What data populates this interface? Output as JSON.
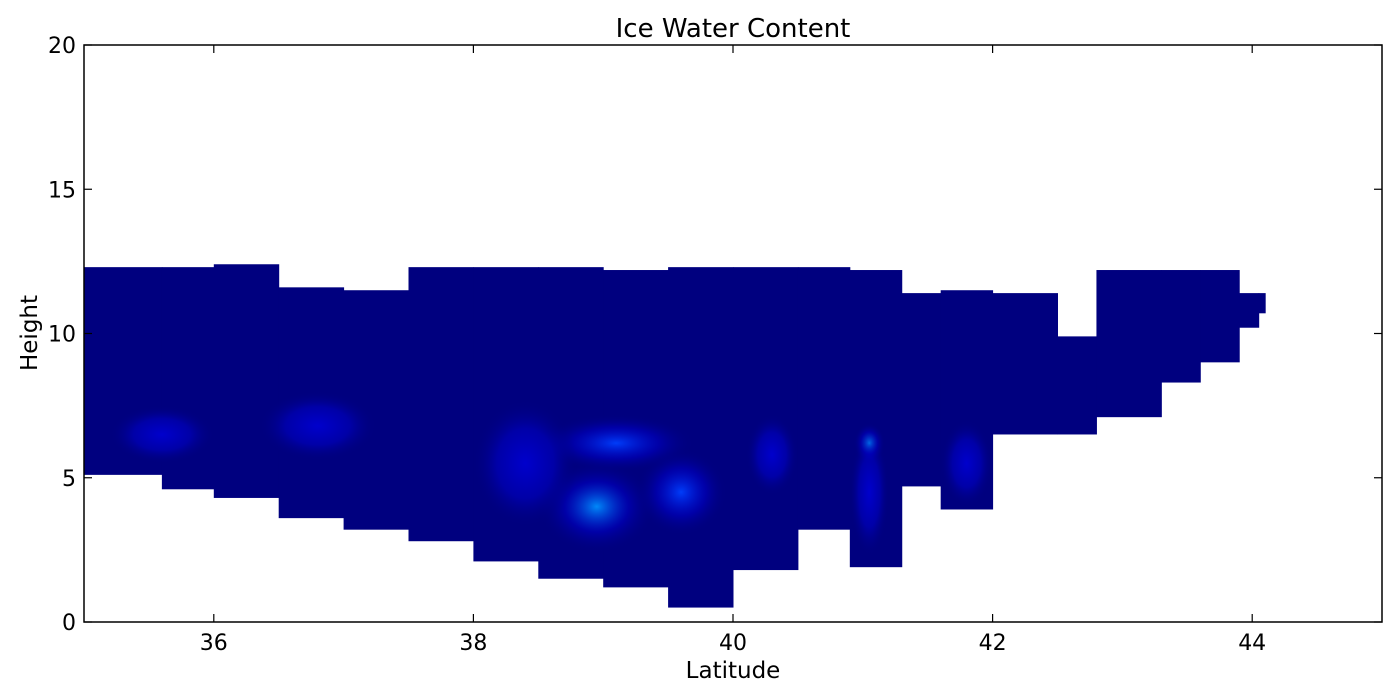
{
  "chart_data": {
    "type": "heatmap",
    "title": "Ice Water Content",
    "xlabel": "Latitude",
    "ylabel": "Height",
    "xlim": [
      35,
      45
    ],
    "ylim": [
      0,
      20
    ],
    "x_ticks": [
      36,
      38,
      40,
      42,
      44
    ],
    "y_ticks": [
      0,
      5,
      10,
      15,
      20
    ],
    "grid": false,
    "colorscale": [
      "#00007f",
      "#0000d0",
      "#0040ff",
      "#0090ff",
      "#20c0ff"
    ],
    "columns": [
      {
        "lat0": 35.0,
        "lat1": 35.6,
        "top": 12.3,
        "bottom": 5.1
      },
      {
        "lat0": 35.6,
        "lat1": 36.0,
        "top": 12.3,
        "bottom": 4.6
      },
      {
        "lat0": 36.0,
        "lat1": 36.5,
        "top": 12.4,
        "bottom": 4.3
      },
      {
        "lat0": 36.5,
        "lat1": 37.0,
        "top": 11.6,
        "bottom": 3.6
      },
      {
        "lat0": 37.0,
        "lat1": 37.5,
        "top": 11.5,
        "bottom": 3.2
      },
      {
        "lat0": 37.5,
        "lat1": 38.0,
        "top": 12.3,
        "bottom": 2.8
      },
      {
        "lat0": 38.0,
        "lat1": 38.5,
        "top": 12.3,
        "bottom": 2.1
      },
      {
        "lat0": 38.5,
        "lat1": 39.0,
        "top": 12.3,
        "bottom": 1.5
      },
      {
        "lat0": 39.0,
        "lat1": 39.5,
        "top": 12.2,
        "bottom": 1.2
      },
      {
        "lat0": 39.5,
        "lat1": 40.0,
        "top": 12.3,
        "bottom": 0.5
      },
      {
        "lat0": 40.0,
        "lat1": 40.5,
        "top": 12.3,
        "bottom": 1.8
      },
      {
        "lat0": 40.5,
        "lat1": 40.9,
        "top": 12.3,
        "bottom": 3.2
      },
      {
        "lat0": 40.9,
        "lat1": 41.3,
        "top": 12.2,
        "bottom": 1.9
      },
      {
        "lat0": 41.3,
        "lat1": 41.6,
        "top": 11.4,
        "bottom": 4.7
      },
      {
        "lat0": 41.6,
        "lat1": 42.0,
        "top": 11.5,
        "bottom": 3.9
      },
      {
        "lat0": 42.0,
        "lat1": 42.5,
        "top": 11.4,
        "bottom": 6.5
      },
      {
        "lat0": 42.5,
        "lat1": 42.8,
        "top": 9.9,
        "bottom": 6.5
      },
      {
        "lat0": 42.8,
        "lat1": 43.3,
        "top": 12.2,
        "bottom": 7.1
      },
      {
        "lat0": 43.3,
        "lat1": 43.6,
        "top": 12.2,
        "bottom": 8.3
      },
      {
        "lat0": 43.6,
        "lat1": 43.9,
        "top": 12.2,
        "bottom": 9.0
      },
      {
        "lat0": 43.9,
        "lat1": 44.05,
        "top": 11.4,
        "bottom": 10.2
      },
      {
        "lat0": 44.05,
        "lat1": 44.1,
        "top": 11.4,
        "bottom": 10.7
      }
    ],
    "hotspots": [
      {
        "lat": 38.95,
        "height": 4.0,
        "value": 0.75,
        "lat_radius": 0.45,
        "height_radius": 1.6
      },
      {
        "lat": 39.1,
        "height": 6.2,
        "value": 0.6,
        "lat_radius": 0.6,
        "height_radius": 1.0
      },
      {
        "lat": 39.6,
        "height": 4.5,
        "value": 0.55,
        "lat_radius": 0.35,
        "height_radius": 1.5
      },
      {
        "lat": 38.4,
        "height": 5.5,
        "value": 0.35,
        "lat_radius": 0.4,
        "height_radius": 2.2
      },
      {
        "lat": 41.05,
        "height": 6.2,
        "value": 0.85,
        "lat_radius": 0.12,
        "height_radius": 0.7
      },
      {
        "lat": 41.05,
        "height": 4.5,
        "value": 0.35,
        "lat_radius": 0.15,
        "height_radius": 2.2
      },
      {
        "lat": 40.3,
        "height": 5.8,
        "value": 0.35,
        "lat_radius": 0.2,
        "height_radius": 1.4
      },
      {
        "lat": 36.8,
        "height": 6.8,
        "value": 0.3,
        "lat_radius": 0.45,
        "height_radius": 1.2
      },
      {
        "lat": 35.6,
        "height": 6.5,
        "value": 0.2,
        "lat_radius": 0.4,
        "height_radius": 1.0
      },
      {
        "lat": 41.8,
        "height": 5.5,
        "value": 0.2,
        "lat_radius": 0.2,
        "height_radius": 1.5
      }
    ]
  }
}
